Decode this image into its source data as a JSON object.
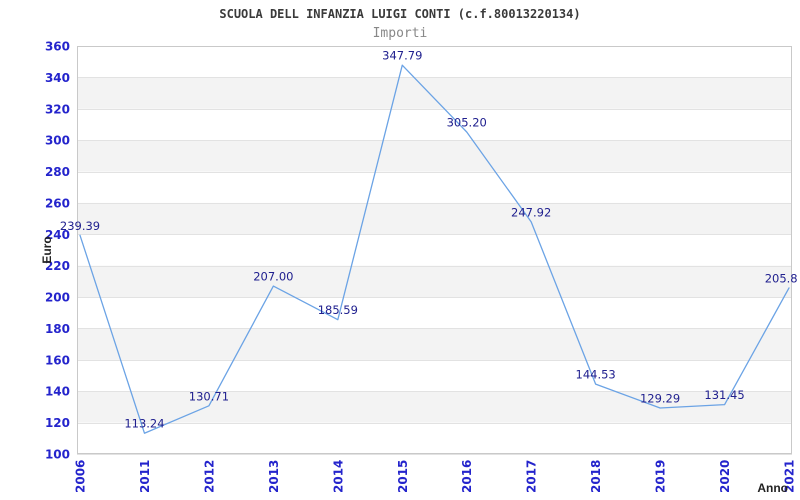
{
  "header": {
    "title": "SCUOLA DELL INFANZIA LUIGI CONTI (c.f.80013220134)",
    "subtitle": "Importi"
  },
  "chart_data": {
    "type": "line",
    "title": "SCUOLA DELL INFANZIA LUIGI CONTI (c.f.80013220134)",
    "subtitle": "Importi",
    "xlabel": "Anno",
    "ylabel": "Euro",
    "categories": [
      "2006",
      "2011",
      "2012",
      "2013",
      "2014",
      "2015",
      "2016",
      "2017",
      "2018",
      "2019",
      "2020",
      "2021"
    ],
    "series": [
      {
        "name": "Importi",
        "values": [
          239.39,
          113.24,
          130.71,
          207.0,
          185.59,
          347.79,
          305.2,
          247.92,
          144.53,
          129.29,
          131.45,
          205.8
        ],
        "point_labels": [
          "239.39",
          "113.24",
          "130.71",
          "207.00",
          "185.59",
          "347.79",
          "305.20",
          "247.92",
          "144.53",
          "129.29",
          "131.45",
          "205.8"
        ]
      }
    ],
    "ylim": [
      100,
      360
    ],
    "ytick_step": 20,
    "grid": "horizontal-only",
    "banded_background": true,
    "legend": "none",
    "markers": "none",
    "colors": {
      "line": "#6ba3e5",
      "tick_label": "#2424cc",
      "point_label": "#20208f",
      "title": "#3a3a3a",
      "subtitle": "#888888",
      "axis_title": "#222222",
      "band": "#f3f3f3",
      "gridline": "#e2e2e2",
      "border": "#c9c9c9",
      "background": "#ffffff"
    }
  }
}
